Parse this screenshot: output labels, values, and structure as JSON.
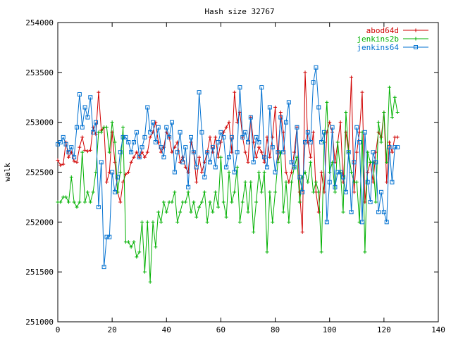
{
  "chart_data": {
    "type": "line",
    "title": "Hash size 32767",
    "xlabel": "",
    "ylabel": "walk",
    "xlim": [
      0,
      140
    ],
    "ylim": [
      251000,
      254000
    ],
    "xticks": [
      0,
      20,
      40,
      60,
      80,
      100,
      120,
      140
    ],
    "yticks": [
      251000,
      251500,
      252000,
      252500,
      253000,
      253500,
      254000
    ],
    "grid": false,
    "legend_position": "top-right",
    "series": [
      {
        "name": "abod64d",
        "color": "#d00000",
        "marker": "plus",
        "x": [
          0,
          1,
          2,
          3,
          4,
          5,
          6,
          7,
          8,
          9,
          10,
          11,
          12,
          13,
          14,
          15,
          16,
          17,
          18,
          19,
          20,
          21,
          22,
          23,
          24,
          25,
          26,
          27,
          28,
          29,
          30,
          31,
          32,
          33,
          34,
          35,
          36,
          37,
          38,
          39,
          40,
          41,
          42,
          43,
          44,
          45,
          46,
          47,
          48,
          49,
          50,
          51,
          52,
          53,
          54,
          55,
          56,
          57,
          58,
          59,
          60,
          61,
          62,
          63,
          64,
          65,
          66,
          67,
          68,
          69,
          70,
          71,
          72,
          73,
          74,
          75,
          76,
          77,
          78,
          79,
          80,
          81,
          82,
          83,
          84,
          85,
          86,
          87,
          88,
          89,
          90,
          91,
          92,
          93,
          94,
          95,
          96,
          97,
          98,
          99,
          100,
          101,
          102,
          103,
          104,
          105,
          106,
          107,
          108,
          109,
          110,
          111,
          112,
          113,
          114,
          115,
          116,
          117,
          118,
          119,
          120,
          121,
          122,
          123,
          124,
          125
        ],
        "values": [
          252620,
          252570,
          252580,
          252800,
          252650,
          252700,
          252610,
          252600,
          252750,
          252850,
          252720,
          252710,
          252720,
          252950,
          252880,
          253300,
          252920,
          252950,
          252400,
          252500,
          252900,
          252600,
          252300,
          252200,
          252400,
          252480,
          252500,
          252600,
          252650,
          252700,
          252650,
          252700,
          252650,
          252700,
          252850,
          252900,
          253000,
          252800,
          252700,
          252750,
          252900,
          252850,
          252700,
          252750,
          252800,
          252600,
          252650,
          252550,
          252500,
          252800,
          252700,
          252400,
          252650,
          252500,
          252600,
          252700,
          252850,
          252700,
          252850,
          252650,
          252800,
          252900,
          252950,
          253000,
          252700,
          253300,
          253000,
          253100,
          252850,
          252700,
          252600,
          253050,
          252800,
          252650,
          252750,
          252700,
          252600,
          252850,
          252650,
          252850,
          253150,
          252600,
          253100,
          252900,
          252500,
          252400,
          252500,
          252700,
          252950,
          252300,
          251900,
          253500,
          252800,
          252650,
          252900,
          252300,
          252100,
          252500,
          252300,
          252900,
          253000,
          252900,
          252600,
          252800,
          253000,
          252400,
          252900,
          252700,
          253450,
          252300,
          252700,
          252900,
          253300,
          252200,
          252500,
          252600,
          252400,
          252700,
          252900,
          252850,
          253100,
          252400,
          252800,
          252700,
          252850,
          252850
        ]
      },
      {
        "name": "jenkins2b",
        "color": "#00b000",
        "marker": "plus",
        "x": [
          0,
          1,
          2,
          3,
          4,
          5,
          6,
          7,
          8,
          9,
          10,
          11,
          12,
          13,
          14,
          15,
          16,
          17,
          18,
          19,
          20,
          21,
          22,
          23,
          24,
          25,
          26,
          27,
          28,
          29,
          30,
          31,
          32,
          33,
          34,
          35,
          36,
          37,
          38,
          39,
          40,
          41,
          42,
          43,
          44,
          45,
          46,
          47,
          48,
          49,
          50,
          51,
          52,
          53,
          54,
          55,
          56,
          57,
          58,
          59,
          60,
          61,
          62,
          63,
          64,
          65,
          66,
          67,
          68,
          69,
          70,
          71,
          72,
          73,
          74,
          75,
          76,
          77,
          78,
          79,
          80,
          81,
          82,
          83,
          84,
          85,
          86,
          87,
          88,
          89,
          90,
          91,
          92,
          93,
          94,
          95,
          96,
          97,
          98,
          99,
          100,
          101,
          102,
          103,
          104,
          105,
          106,
          107,
          108,
          109,
          110,
          111,
          112,
          113,
          114,
          115,
          116,
          117,
          118,
          119,
          120,
          121,
          122,
          123,
          124,
          125
        ],
        "values": [
          252200,
          252200,
          252250,
          252250,
          252200,
          252450,
          252200,
          252150,
          252200,
          252700,
          252200,
          252300,
          252200,
          252300,
          252500,
          252900,
          252900,
          252950,
          252950,
          252700,
          253000,
          252800,
          252300,
          252500,
          252950,
          251800,
          251800,
          251750,
          251800,
          251650,
          251700,
          252000,
          251500,
          252000,
          251400,
          252000,
          251750,
          252100,
          252000,
          252200,
          252100,
          252200,
          252200,
          252300,
          252000,
          252100,
          252200,
          252200,
          252300,
          252100,
          252200,
          252050,
          252150,
          252200,
          252300,
          252000,
          252200,
          252100,
          252300,
          252150,
          252650,
          252200,
          252050,
          252500,
          252200,
          252300,
          252550,
          252000,
          252200,
          252400,
          252100,
          252400,
          251900,
          252200,
          252500,
          252300,
          252500,
          251700,
          252300,
          252000,
          252300,
          252600,
          252700,
          252100,
          252400,
          252000,
          252400,
          252550,
          252650,
          252200,
          252450,
          252500,
          252400,
          252600,
          252300,
          252400,
          252300,
          251700,
          252800,
          253200,
          252500,
          252600,
          252300,
          252800,
          252500,
          252100,
          253100,
          252700,
          252500,
          252400,
          252400,
          252000,
          252900,
          251700,
          252700,
          252600,
          252600,
          252200,
          253000,
          252800,
          253100,
          252600,
          253350,
          253050,
          253250,
          253100
        ]
      },
      {
        "name": "jenkins64",
        "color": "#0070d0",
        "marker": "square",
        "x": [
          0,
          1,
          2,
          3,
          4,
          5,
          6,
          7,
          8,
          9,
          10,
          11,
          12,
          13,
          14,
          15,
          16,
          17,
          18,
          19,
          20,
          21,
          22,
          23,
          24,
          25,
          26,
          27,
          28,
          29,
          30,
          31,
          32,
          33,
          34,
          35,
          36,
          37,
          38,
          39,
          40,
          41,
          42,
          43,
          44,
          45,
          46,
          47,
          48,
          49,
          50,
          51,
          52,
          53,
          54,
          55,
          56,
          57,
          58,
          59,
          60,
          61,
          62,
          63,
          64,
          65,
          66,
          67,
          68,
          69,
          70,
          71,
          72,
          73,
          74,
          75,
          76,
          77,
          78,
          79,
          80,
          81,
          82,
          83,
          84,
          85,
          86,
          87,
          88,
          89,
          90,
          91,
          92,
          93,
          94,
          95,
          96,
          97,
          98,
          99,
          100,
          101,
          102,
          103,
          104,
          105,
          106,
          107,
          108,
          109,
          110,
          111,
          112,
          113,
          114,
          115,
          116,
          117,
          118,
          119,
          120,
          121,
          122,
          123,
          124,
          125
        ],
        "values": [
          252780,
          252800,
          252850,
          252780,
          252700,
          252750,
          252650,
          252950,
          253280,
          252950,
          253150,
          253050,
          253250,
          252900,
          253000,
          252150,
          252600,
          251550,
          251850,
          251850,
          252500,
          252300,
          252450,
          252700,
          252850,
          252850,
          252800,
          252700,
          252800,
          252900,
          252650,
          252750,
          252850,
          253150,
          252900,
          253000,
          252800,
          252950,
          252750,
          252650,
          252950,
          252850,
          253000,
          252500,
          252700,
          252900,
          252600,
          252750,
          252350,
          252850,
          252700,
          252550,
          253300,
          252900,
          252450,
          252700,
          252600,
          252750,
          252550,
          252800,
          252900,
          252850,
          252550,
          252650,
          252850,
          252500,
          252700,
          253350,
          252850,
          252900,
          252800,
          253050,
          252600,
          252850,
          252800,
          253350,
          252650,
          252550,
          253150,
          252750,
          252500,
          252700,
          253050,
          252700,
          253000,
          253200,
          252600,
          252550,
          252950,
          252450,
          252300,
          252800,
          252900,
          252800,
          253400,
          253550,
          253150,
          252800,
          252900,
          252000,
          252400,
          252950,
          252350,
          252500,
          252500,
          252450,
          252300,
          252700,
          252100,
          252600,
          252950,
          252800,
          252000,
          252900,
          252400,
          252200,
          252700,
          252600,
          252100,
          252300,
          252100,
          252000,
          252750,
          252400,
          252750,
          252750
        ]
      }
    ]
  }
}
